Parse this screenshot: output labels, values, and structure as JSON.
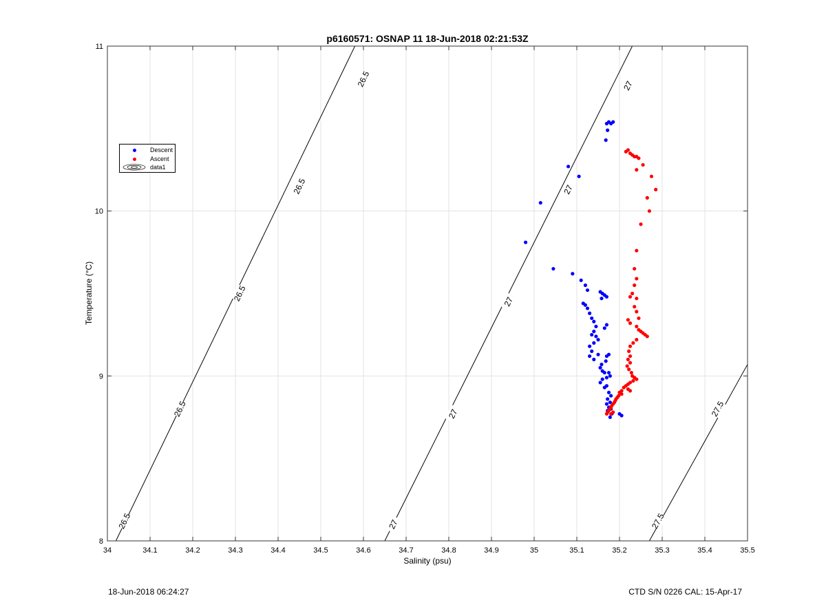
{
  "footer": {
    "left": "18-Jun-2018 06:24:27",
    "right": "CTD S/N 0226  CAL: 15-Apr-17"
  },
  "legend": {
    "items": [
      {
        "label": "Descent",
        "color": "#0000ff"
      },
      {
        "label": "Ascent",
        "color": "#ff0000"
      },
      {
        "label": "data1",
        "icon": "contour-icon"
      }
    ]
  },
  "chart_data": {
    "type": "scatter",
    "title": "p6160571: OSNAP 11 18-Jun-2018 02:21:53Z",
    "xlabel": "Salinity (psu)",
    "ylabel": "Temperature (°C)",
    "xlim": [
      34,
      35.5
    ],
    "ylim": [
      8,
      11
    ],
    "x_ticks": [
      "34",
      "34.1",
      "34.2",
      "34.3",
      "34.4",
      "34.5",
      "34.6",
      "34.7",
      "34.8",
      "34.9",
      "35",
      "35.1",
      "35.2",
      "35.3",
      "35.4",
      "35.5"
    ],
    "y_ticks": [
      "8",
      "9",
      "10",
      "11"
    ],
    "grid": true,
    "legend_position": "top-left",
    "contours": [
      {
        "label": "26.5",
        "points": [
          [
            34.02,
            8.0
          ],
          [
            34.58,
            11.0
          ]
        ],
        "label_positions": [
          [
            34.04,
            8.12
          ],
          [
            34.17,
            8.8
          ],
          [
            34.31,
            9.5
          ],
          [
            34.45,
            10.15
          ],
          [
            34.6,
            10.8
          ]
        ]
      },
      {
        "label": "27",
        "points": [
          [
            34.65,
            8.0
          ],
          [
            35.23,
            11.0
          ]
        ],
        "label_positions": [
          [
            34.67,
            8.1
          ],
          [
            34.81,
            8.77
          ],
          [
            34.94,
            9.45
          ],
          [
            35.08,
            10.13
          ],
          [
            35.22,
            10.76
          ]
        ]
      },
      {
        "label": "27.5",
        "points": [
          [
            35.27,
            8.0
          ],
          [
            35.5,
            9.07
          ]
        ],
        "label_positions": [
          [
            35.29,
            8.12
          ],
          [
            35.43,
            8.8
          ]
        ]
      }
    ],
    "series": [
      {
        "name": "Descent",
        "color": "#0000ff",
        "points": [
          [
            35.17,
            10.53
          ],
          [
            35.18,
            10.53
          ],
          [
            35.175,
            10.54
          ],
          [
            35.185,
            10.54
          ],
          [
            35.172,
            10.49
          ],
          [
            35.168,
            10.43
          ],
          [
            35.08,
            10.27
          ],
          [
            35.105,
            10.21
          ],
          [
            35.015,
            10.05
          ],
          [
            34.98,
            9.81
          ],
          [
            35.045,
            9.65
          ],
          [
            35.09,
            9.62
          ],
          [
            35.11,
            9.58
          ],
          [
            35.12,
            9.55
          ],
          [
            35.125,
            9.52
          ],
          [
            35.155,
            9.51
          ],
          [
            35.16,
            9.5
          ],
          [
            35.165,
            9.49
          ],
          [
            35.17,
            9.48
          ],
          [
            35.158,
            9.47
          ],
          [
            35.115,
            9.44
          ],
          [
            35.12,
            9.43
          ],
          [
            35.125,
            9.41
          ],
          [
            35.13,
            9.38
          ],
          [
            35.135,
            9.35
          ],
          [
            35.14,
            9.33
          ],
          [
            35.145,
            9.3
          ],
          [
            35.14,
            9.27
          ],
          [
            35.135,
            9.25
          ],
          [
            35.145,
            9.24
          ],
          [
            35.17,
            9.31
          ],
          [
            35.165,
            9.29
          ],
          [
            35.15,
            9.22
          ],
          [
            35.14,
            9.2
          ],
          [
            35.13,
            9.18
          ],
          [
            35.135,
            9.15
          ],
          [
            35.13,
            9.12
          ],
          [
            35.14,
            9.1
          ],
          [
            35.15,
            9.13
          ],
          [
            35.17,
            9.12
          ],
          [
            35.175,
            9.13
          ],
          [
            35.168,
            9.09
          ],
          [
            35.158,
            9.07
          ],
          [
            35.155,
            9.05
          ],
          [
            35.16,
            9.03
          ],
          [
            35.165,
            9.02
          ],
          [
            35.175,
            9.02
          ],
          [
            35.178,
            9.0
          ],
          [
            35.17,
            8.99
          ],
          [
            35.16,
            8.98
          ],
          [
            35.155,
            8.96
          ],
          [
            35.17,
            8.94
          ],
          [
            35.165,
            8.93
          ],
          [
            35.175,
            8.9
          ],
          [
            35.18,
            8.88
          ],
          [
            35.172,
            8.86
          ],
          [
            35.178,
            8.84
          ],
          [
            35.17,
            8.83
          ],
          [
            35.175,
            8.81
          ],
          [
            35.18,
            8.8
          ],
          [
            35.172,
            8.79
          ],
          [
            35.182,
            8.77
          ],
          [
            35.178,
            8.75
          ],
          [
            35.2,
            8.77
          ],
          [
            35.205,
            8.76
          ]
        ]
      },
      {
        "name": "Ascent",
        "color": "#ff0000",
        "points": [
          [
            35.215,
            10.36
          ],
          [
            35.22,
            10.37
          ],
          [
            35.225,
            10.35
          ],
          [
            35.23,
            10.34
          ],
          [
            35.235,
            10.33
          ],
          [
            35.24,
            10.33
          ],
          [
            35.245,
            10.32
          ],
          [
            35.255,
            10.28
          ],
          [
            35.24,
            10.25
          ],
          [
            35.275,
            10.21
          ],
          [
            35.285,
            10.13
          ],
          [
            35.265,
            10.08
          ],
          [
            35.27,
            10.0
          ],
          [
            35.25,
            9.92
          ],
          [
            35.24,
            9.76
          ],
          [
            35.235,
            9.65
          ],
          [
            35.24,
            9.59
          ],
          [
            35.235,
            9.55
          ],
          [
            35.23,
            9.5
          ],
          [
            35.225,
            9.48
          ],
          [
            35.24,
            9.47
          ],
          [
            35.235,
            9.42
          ],
          [
            35.24,
            9.39
          ],
          [
            35.245,
            9.35
          ],
          [
            35.22,
            9.34
          ],
          [
            35.225,
            9.32
          ],
          [
            35.24,
            9.3
          ],
          [
            35.245,
            9.28
          ],
          [
            35.25,
            9.27
          ],
          [
            35.255,
            9.26
          ],
          [
            35.26,
            9.25
          ],
          [
            35.265,
            9.24
          ],
          [
            35.24,
            9.22
          ],
          [
            35.232,
            9.2
          ],
          [
            35.225,
            9.18
          ],
          [
            35.222,
            9.15
          ],
          [
            35.225,
            9.12
          ],
          [
            35.22,
            9.1
          ],
          [
            35.225,
            9.08
          ],
          [
            35.218,
            9.06
          ],
          [
            35.222,
            9.04
          ],
          [
            35.228,
            9.02
          ],
          [
            35.23,
            9.0
          ],
          [
            35.235,
            8.99
          ],
          [
            35.24,
            8.98
          ],
          [
            35.232,
            8.97
          ],
          [
            35.225,
            8.96
          ],
          [
            35.22,
            8.95
          ],
          [
            35.215,
            8.94
          ],
          [
            35.21,
            8.93
          ],
          [
            35.22,
            8.92
          ],
          [
            35.225,
            8.91
          ],
          [
            35.205,
            8.91
          ],
          [
            35.2,
            8.9
          ],
          [
            35.205,
            8.89
          ],
          [
            35.198,
            8.88
          ],
          [
            35.195,
            8.87
          ],
          [
            35.192,
            8.86
          ],
          [
            35.19,
            8.85
          ],
          [
            35.188,
            8.84
          ],
          [
            35.185,
            8.83
          ],
          [
            35.182,
            8.82
          ],
          [
            35.18,
            8.81
          ],
          [
            35.178,
            8.8
          ],
          [
            35.175,
            8.79
          ],
          [
            35.172,
            8.78
          ],
          [
            35.17,
            8.77
          ],
          [
            35.18,
            8.77
          ],
          [
            35.185,
            8.78
          ]
        ]
      }
    ]
  }
}
